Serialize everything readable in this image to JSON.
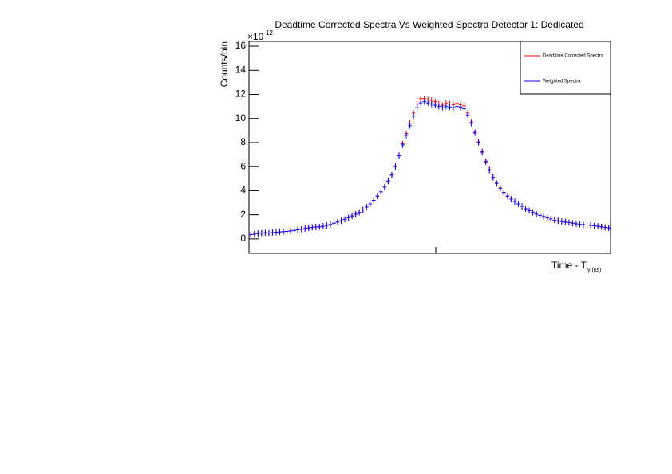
{
  "chart_data": {
    "type": "errorbar",
    "title": "Deadtime Corrected Spectra Vs Weighted Spectra Detector 1: Dedicated",
    "ylabel": "Counts/bin",
    "xlabel": "Time - T",
    "xlabel_subscript": "γ (ns)",
    "y_multiplier_base": "×10",
    "y_multiplier_exponent": "-12",
    "categories": [
      null,
      null,
      null,
      null,
      null,
      null,
      null,
      null,
      null,
      null,
      null,
      null,
      null,
      null,
      null,
      null,
      null,
      null,
      null,
      null,
      null,
      null,
      null,
      null,
      null,
      null,
      null,
      null,
      null,
      null,
      null,
      null,
      null,
      null,
      null,
      null,
      null,
      null,
      null,
      null,
      null,
      null,
      null,
      null,
      null,
      null,
      null,
      null,
      null,
      null,
      null,
      null,
      null,
      null,
      null,
      null,
      null,
      null,
      null,
      null,
      null,
      null,
      null,
      null,
      null,
      null,
      null,
      null,
      null,
      null,
      null,
      null,
      null,
      null,
      null,
      null,
      null,
      null,
      null,
      null,
      null,
      null,
      null,
      null,
      null,
      null,
      null,
      null,
      null,
      null,
      null,
      null,
      null,
      null,
      null,
      null,
      null,
      null,
      null,
      null
    ],
    "ylim": [
      -1.2,
      16.4
    ],
    "yticks": [
      0,
      2,
      4,
      6,
      8,
      10,
      12,
      14,
      16
    ],
    "legend": "top-right",
    "series": [
      {
        "name": "Deadtime Corrected Spectra",
        "color": "#ff0000",
        "error": 0.25,
        "values": [
          0.35,
          0.4,
          0.45,
          0.48,
          0.5,
          0.48,
          0.52,
          0.55,
          0.58,
          0.6,
          0.62,
          0.66,
          0.7,
          0.75,
          0.8,
          0.85,
          0.9,
          0.95,
          0.98,
          1.0,
          1.05,
          1.12,
          1.2,
          1.3,
          1.4,
          1.5,
          1.62,
          1.75,
          1.9,
          2.05,
          2.2,
          2.4,
          2.65,
          2.9,
          3.2,
          3.55,
          3.9,
          4.3,
          4.8,
          5.3,
          6.05,
          6.95,
          7.9,
          8.75,
          9.6,
          10.45,
          11.2,
          11.65,
          11.65,
          11.55,
          11.5,
          11.4,
          11.2,
          11.1,
          11.25,
          11.2,
          11.15,
          11.25,
          11.15,
          11.05,
          10.45,
          9.7,
          8.85,
          8.05,
          7.25,
          6.45,
          5.75,
          5.12,
          4.62,
          4.22,
          3.85,
          3.55,
          3.3,
          3.1,
          2.9,
          2.7,
          2.5,
          2.35,
          2.2,
          2.05,
          1.95,
          1.85,
          1.75,
          1.65,
          1.55,
          1.5,
          1.45,
          1.4,
          1.35,
          1.3,
          1.25,
          1.2,
          1.18,
          1.15,
          1.12,
          1.08,
          1.05,
          1.0,
          0.95,
          0.9
        ]
      },
      {
        "name": "Weighted Spectra",
        "color": "#0000ff",
        "error": 0.25,
        "values": [
          0.35,
          0.4,
          0.45,
          0.48,
          0.5,
          0.48,
          0.52,
          0.55,
          0.58,
          0.6,
          0.62,
          0.66,
          0.7,
          0.75,
          0.8,
          0.85,
          0.9,
          0.95,
          0.98,
          1.0,
          1.05,
          1.12,
          1.2,
          1.3,
          1.4,
          1.5,
          1.62,
          1.75,
          1.9,
          2.05,
          2.2,
          2.4,
          2.65,
          2.9,
          3.2,
          3.55,
          3.9,
          4.3,
          4.8,
          5.3,
          6.0,
          6.9,
          7.8,
          8.6,
          9.4,
          10.2,
          10.9,
          11.3,
          11.4,
          11.3,
          11.2,
          11.1,
          11.0,
          10.9,
          11.0,
          10.95,
          10.9,
          11.0,
          10.95,
          10.8,
          10.3,
          9.6,
          8.8,
          8.0,
          7.2,
          6.4,
          5.7,
          5.1,
          4.6,
          4.2,
          3.85,
          3.55,
          3.3,
          3.1,
          2.9,
          2.7,
          2.5,
          2.35,
          2.2,
          2.05,
          1.95,
          1.85,
          1.75,
          1.65,
          1.55,
          1.5,
          1.45,
          1.4,
          1.35,
          1.3,
          1.25,
          1.2,
          1.18,
          1.15,
          1.12,
          1.08,
          1.05,
          1.0,
          0.95,
          0.9
        ]
      }
    ]
  }
}
